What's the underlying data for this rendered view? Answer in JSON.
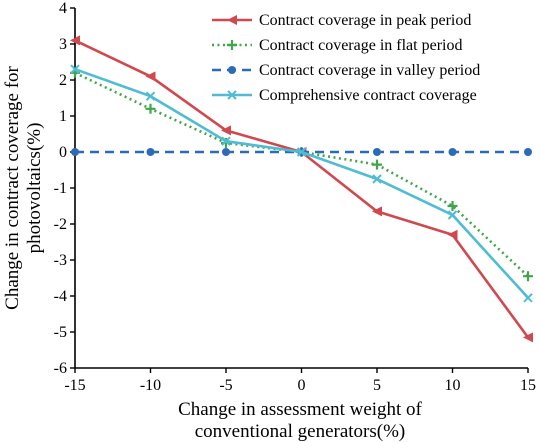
{
  "chart_data": {
    "type": "line",
    "title": "",
    "xlabel": [
      "Change in assessment weight of",
      "conventional generators(%)"
    ],
    "ylabel": [
      "Change in contract coverage for",
      "photovoltaics(%)"
    ],
    "x": [
      -15,
      -10,
      -5,
      0,
      5,
      10,
      15
    ],
    "xlim": [
      -15,
      15
    ],
    "ylim": [
      -6,
      4
    ],
    "xticks": [
      "-15",
      "-10",
      "-5",
      "0",
      "5",
      "10",
      "15"
    ],
    "yticks": [
      "4",
      "3",
      "2",
      "1",
      "0",
      "-1",
      "-2",
      "-3",
      "-4",
      "-5",
      "-6"
    ],
    "grid": false,
    "legend_position": "top-right",
    "series": [
      {
        "name": "Contract coverage in peak period",
        "values": [
          3.1,
          2.1,
          0.6,
          0.0,
          -1.65,
          -2.3,
          -5.15
        ],
        "color": "#d0494f",
        "marker": "triangle-left",
        "line_style": "solid"
      },
      {
        "name": "Contract coverage in flat period",
        "values": [
          2.2,
          1.2,
          0.25,
          0.0,
          -0.35,
          -1.5,
          -3.45
        ],
        "color": "#3fa64a",
        "marker": "plus",
        "line_style": "dotted"
      },
      {
        "name": "Contract coverage in valley period",
        "values": [
          0.0,
          0.0,
          0.0,
          0.0,
          0.0,
          0.0,
          0.0
        ],
        "color": "#2c6bb8",
        "marker": "circle",
        "line_style": "dashed"
      },
      {
        "name": "Comprehensive contract coverage",
        "values": [
          2.3,
          1.55,
          0.3,
          0.0,
          -0.75,
          -1.75,
          -4.05
        ],
        "color": "#4fbcd4",
        "marker": "x",
        "line_style": "solid"
      }
    ]
  }
}
